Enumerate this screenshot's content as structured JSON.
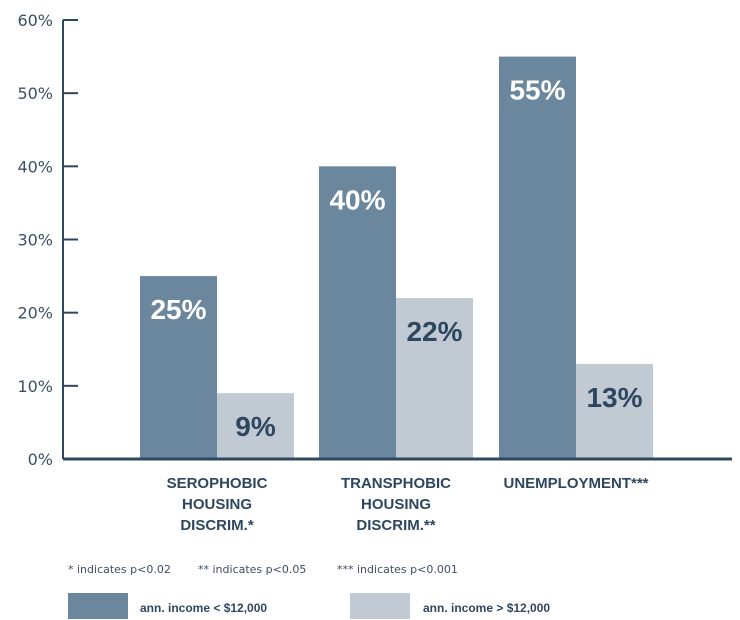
{
  "chart_data": {
    "type": "bar",
    "categories": [
      [
        "SEROPHOBIC",
        "HOUSING",
        "DISCRIM.*"
      ],
      [
        "TRANSPHOBIC",
        "HOUSING",
        "DISCRIM.**"
      ],
      [
        "UNEMPLOYMENT***"
      ]
    ],
    "series": [
      {
        "name": "ann. income < $12,000",
        "values": [
          25,
          40,
          55
        ],
        "labels": [
          "25%",
          "40%",
          "55%"
        ],
        "color": "#6a879e",
        "label_color": "#ffffff"
      },
      {
        "name": "ann. income > $12,000",
        "values": [
          9,
          22,
          13
        ],
        "labels": [
          "9%",
          "22%",
          "13%"
        ],
        "color": "#c1c9d3",
        "label_color": "#2e4760"
      }
    ],
    "yticks": [
      "0%",
      "10%",
      "20%",
      "30%",
      "40%",
      "50%",
      "60%"
    ],
    "ylim": [
      0,
      60
    ],
    "grid": false,
    "legend_position": "bottom"
  },
  "notes": [
    "* indicates p<0.02",
    "** indicates p<0.05",
    "*** indicates p<0.001"
  ],
  "legend": {
    "items": [
      {
        "label": "ann. income < $12,000",
        "color": "#6a879e"
      },
      {
        "label": "ann. income > $12,000",
        "color": "#c1c9d3"
      }
    ]
  },
  "colors": {
    "axis": "#2e4760",
    "text": "#3d4f66"
  }
}
